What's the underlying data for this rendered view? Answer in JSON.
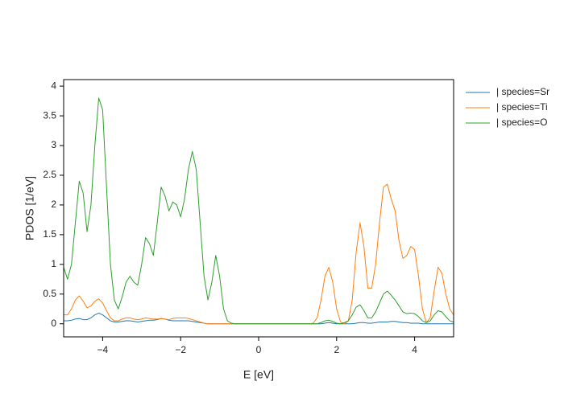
{
  "chart_data": {
    "type": "line",
    "x_label": "E [eV]",
    "y_label": "PDOS [1/eV]",
    "x": [
      -5,
      -4.9,
      -4.8,
      -4.7,
      -4.6,
      -4.5,
      -4.4,
      -4.3,
      -4.2,
      -4.1,
      -4,
      -3.9,
      -3.8,
      -3.7,
      -3.6,
      -3.5,
      -3.4,
      -3.3,
      -3.2,
      -3.1,
      -3,
      -2.9,
      -2.8,
      -2.7,
      -2.6,
      -2.5,
      -2.4,
      -2.3,
      -2.2,
      -2.1,
      -2,
      -1.9,
      -1.8,
      -1.7,
      -1.6,
      -1.5,
      -1.4,
      -1.3,
      -1.2,
      -1.1,
      -1,
      -0.9,
      -0.8,
      -0.7,
      -0.6,
      -0.5,
      -0.4,
      -0.3,
      -0.2,
      -0.1,
      0,
      0.1,
      0.2,
      0.3,
      0.4,
      0.5,
      0.6,
      0.7,
      0.8,
      0.9,
      1,
      1.1,
      1.2,
      1.3,
      1.4,
      1.5,
      1.6,
      1.7,
      1.8,
      1.9,
      2,
      2.1,
      2.2,
      2.3,
      2.4,
      2.5,
      2.6,
      2.7,
      2.8,
      2.9,
      3,
      3.1,
      3.2,
      3.3,
      3.4,
      3.5,
      3.6,
      3.7,
      3.8,
      3.9,
      4,
      4.1,
      4.2,
      4.3,
      4.4,
      4.5,
      4.6,
      4.7,
      4.8,
      4.9,
      5
    ],
    "series": [
      {
        "name": "| species=Sr",
        "color": "#1f77b4",
        "values": [
          0.05,
          0.05,
          0.06,
          0.08,
          0.09,
          0.07,
          0.07,
          0.1,
          0.15,
          0.18,
          0.15,
          0.1,
          0.05,
          0.03,
          0.03,
          0.04,
          0.05,
          0.05,
          0.04,
          0.03,
          0.04,
          0.05,
          0.06,
          0.06,
          0.07,
          0.09,
          0.08,
          0.06,
          0.05,
          0.05,
          0.05,
          0.05,
          0.05,
          0.04,
          0.03,
          0.02,
          0.01,
          0,
          0,
          0,
          0,
          0,
          0,
          0,
          0,
          0,
          0,
          0,
          0,
          0,
          0,
          0,
          0,
          0,
          0,
          0,
          0,
          0,
          0,
          0,
          0,
          0,
          0,
          0,
          0,
          0,
          0,
          0.01,
          0.02,
          0.01,
          0,
          0,
          0,
          0,
          0,
          0.01,
          0.02,
          0.02,
          0.01,
          0.01,
          0.02,
          0.03,
          0.03,
          0.03,
          0.04,
          0.04,
          0.03,
          0.02,
          0.02,
          0.01,
          0.01,
          0.01,
          0,
          0,
          0,
          0,
          0,
          0,
          0,
          0,
          0
        ]
      },
      {
        "name": "| species=Ti",
        "color": "#ff7f0e",
        "values": [
          0.15,
          0.15,
          0.25,
          0.4,
          0.47,
          0.38,
          0.27,
          0.3,
          0.38,
          0.42,
          0.35,
          0.22,
          0.1,
          0.05,
          0.05,
          0.08,
          0.1,
          0.1,
          0.08,
          0.07,
          0.08,
          0.1,
          0.09,
          0.08,
          0.08,
          0.09,
          0.08,
          0.07,
          0.09,
          0.1,
          0.1,
          0.1,
          0.09,
          0.07,
          0.05,
          0.03,
          0.01,
          0,
          0,
          0,
          0,
          0,
          0,
          0,
          0,
          0,
          0,
          0,
          0,
          0,
          0,
          0,
          0,
          0,
          0,
          0,
          0,
          0,
          0,
          0,
          0,
          0,
          0,
          0,
          0.01,
          0.1,
          0.4,
          0.8,
          0.95,
          0.7,
          0.25,
          0.03,
          0,
          0.05,
          0.4,
          1.2,
          1.7,
          1.3,
          0.6,
          0.6,
          1.0,
          1.7,
          2.3,
          2.35,
          2.1,
          1.9,
          1.4,
          1.1,
          1.15,
          1.3,
          1.25,
          0.8,
          0.25,
          0.02,
          0.1,
          0.55,
          0.95,
          0.85,
          0.5,
          0.25,
          0.15
        ]
      },
      {
        "name": "| species=O",
        "color": "#2ca02c",
        "values": [
          0.95,
          0.75,
          1.0,
          1.7,
          2.4,
          2.2,
          1.55,
          2.0,
          3.0,
          3.8,
          3.6,
          2.3,
          1.0,
          0.4,
          0.25,
          0.45,
          0.7,
          0.8,
          0.7,
          0.65,
          1.0,
          1.45,
          1.35,
          1.15,
          1.7,
          2.3,
          2.15,
          1.9,
          2.05,
          2.0,
          1.8,
          2.1,
          2.6,
          2.9,
          2.6,
          1.7,
          0.8,
          0.4,
          0.7,
          1.15,
          0.8,
          0.25,
          0.05,
          0.01,
          0,
          0,
          0,
          0,
          0,
          0,
          0,
          0,
          0,
          0,
          0,
          0,
          0,
          0,
          0,
          0,
          0,
          0,
          0,
          0,
          0,
          0,
          0.02,
          0.05,
          0.06,
          0.04,
          0.01,
          0,
          0.02,
          0.05,
          0.15,
          0.28,
          0.32,
          0.22,
          0.1,
          0.1,
          0.2,
          0.35,
          0.5,
          0.55,
          0.48,
          0.4,
          0.3,
          0.2,
          0.17,
          0.18,
          0.17,
          0.12,
          0.05,
          0.02,
          0.05,
          0.15,
          0.22,
          0.2,
          0.12,
          0.05,
          0.03
        ]
      }
    ],
    "xlim": [
      -5,
      5
    ],
    "xticks": [
      {
        "value": -4,
        "label": "−4"
      },
      {
        "value": -2,
        "label": "−2"
      },
      0,
      2,
      4
    ],
    "ylim": [
      -0.22,
      4.11
    ],
    "yticks": [
      0,
      0.5,
      1,
      1.5,
      2,
      2.5,
      3,
      3.5,
      4
    ],
    "grid": false,
    "legend": "right"
  }
}
